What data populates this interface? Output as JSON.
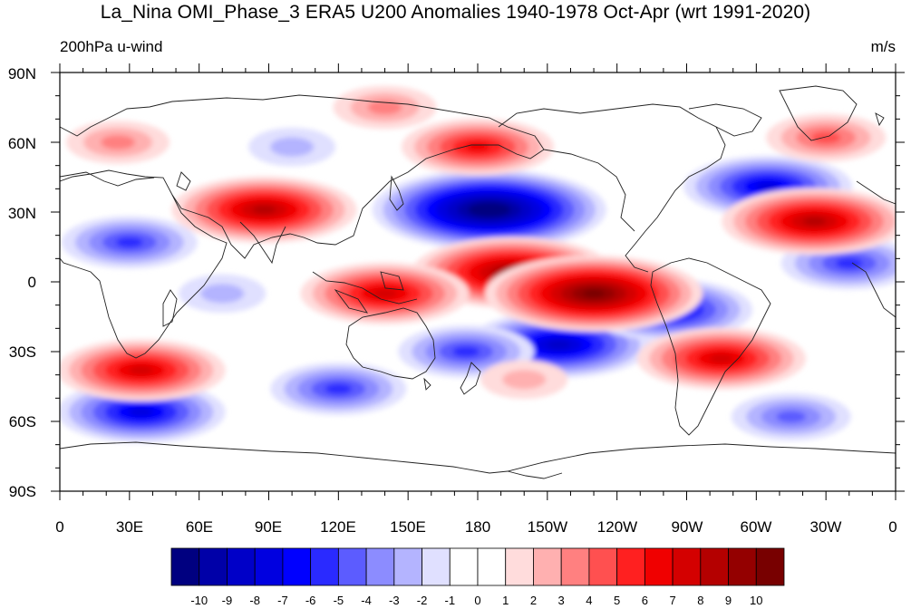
{
  "title": "La_Nina OMI_Phase_3 ERA5 U200 Anomalies 1940-1978 Oct-Apr (wrt 1991-2020)",
  "subtitle_left": "200hPa u-wind",
  "subtitle_right": "m/s",
  "lat_labels": [
    "90N",
    "60N",
    "30N",
    "0",
    "30S",
    "60S",
    "90S"
  ],
  "lon_labels": [
    "0",
    "30E",
    "60E",
    "90E",
    "120E",
    "150E",
    "180",
    "150W",
    "120W",
    "90W",
    "60W",
    "30W",
    "0"
  ],
  "colorbar": {
    "labels": [
      "-10",
      "-9",
      "-8",
      "-7",
      "-6",
      "-5",
      "-4",
      "-3",
      "-2",
      "-1",
      "0",
      "1",
      "2",
      "3",
      "4",
      "5",
      "6",
      "7",
      "8",
      "9",
      "10"
    ],
    "colors": [
      "#000080",
      "#0000a8",
      "#0000c8",
      "#0000e0",
      "#0000ff",
      "#2a2aff",
      "#5c5cff",
      "#8c8cff",
      "#b4b4ff",
      "#e0e0ff",
      "#ffffff",
      "#ffffff",
      "#ffdcdc",
      "#ffb0b0",
      "#ff8080",
      "#ff5050",
      "#ff2020",
      "#f00000",
      "#d40000",
      "#b40000",
      "#940000",
      "#780000"
    ]
  },
  "chart_data": {
    "type": "heatmap",
    "title": "La_Nina OMI_Phase_3 ERA5 U200 Anomalies 1940-1978 Oct-Apr (wrt 1991-2020)",
    "variable": "200hPa u-wind",
    "units": "m/s",
    "xrange": [
      0,
      360
    ],
    "yrange": [
      -90,
      90
    ],
    "levels": [
      -10,
      -9,
      -8,
      -7,
      -6,
      -5,
      -4,
      -3,
      -2,
      -1,
      0,
      1,
      2,
      3,
      4,
      5,
      6,
      7,
      8,
      9,
      10
    ],
    "anomaly_centers": [
      {
        "lon": 185,
        "lat": 31,
        "value": -11
      },
      {
        "lon": 305,
        "lat": 41,
        "value": -7
      },
      {
        "lon": 30,
        "lat": 17,
        "value": -5
      },
      {
        "lon": 35,
        "lat": -56,
        "value": -7
      },
      {
        "lon": 215,
        "lat": -27,
        "value": -8
      },
      {
        "lon": 262,
        "lat": -12,
        "value": -7
      },
      {
        "lon": 175,
        "lat": -30,
        "value": -5
      },
      {
        "lon": 120,
        "lat": -46,
        "value": -5
      },
      {
        "lon": 340,
        "lat": 8,
        "value": -5
      },
      {
        "lon": 315,
        "lat": -58,
        "value": -4
      },
      {
        "lon": 100,
        "lat": 58,
        "value": -2
      },
      {
        "lon": 195,
        "lat": 4,
        "value": 9
      },
      {
        "lon": 230,
        "lat": -5,
        "value": 10
      },
      {
        "lon": 140,
        "lat": -5,
        "value": 7
      },
      {
        "lon": 88,
        "lat": 31,
        "value": 8
      },
      {
        "lon": 325,
        "lat": 26,
        "value": 8
      },
      {
        "lon": 35,
        "lat": -38,
        "value": 7
      },
      {
        "lon": 285,
        "lat": -33,
        "value": 7
      },
      {
        "lon": 180,
        "lat": 58,
        "value": 6
      },
      {
        "lon": 330,
        "lat": 62,
        "value": 4
      },
      {
        "lon": 25,
        "lat": 60,
        "value": 3
      },
      {
        "lon": 140,
        "lat": 75,
        "value": 3
      },
      {
        "lon": 200,
        "lat": -42,
        "value": 2
      },
      {
        "lon": 70,
        "lat": -5,
        "value": -2
      }
    ]
  }
}
